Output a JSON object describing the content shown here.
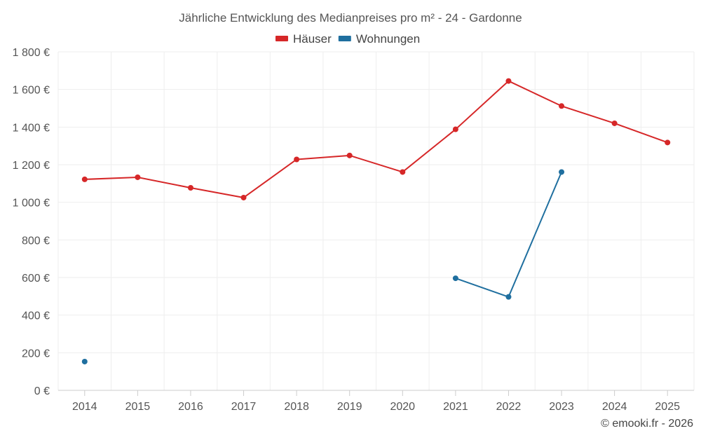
{
  "chart_data": {
    "type": "line",
    "title": "Jährliche Entwicklung des Medianpreises pro m² - 24 - Gardonne",
    "categories": [
      "2014",
      "2015",
      "2016",
      "2017",
      "2018",
      "2019",
      "2020",
      "2021",
      "2022",
      "2023",
      "2024",
      "2025"
    ],
    "series": [
      {
        "name": "Häuser",
        "color": "#d62728",
        "values": [
          1122,
          1133,
          1077,
          1025,
          1228,
          1249,
          1161,
          1388,
          1645,
          1512,
          1420,
          1318
        ]
      },
      {
        "name": "Wohnungen",
        "color": "#1f6f9f",
        "values": [
          153,
          null,
          null,
          null,
          null,
          null,
          null,
          596,
          497,
          1161,
          null,
          null
        ]
      }
    ],
    "y_ticks": [
      0,
      200,
      400,
      600,
      800,
      1000,
      1200,
      1400,
      1600,
      1800
    ],
    "y_tick_labels": [
      "0 €",
      "200 €",
      "400 €",
      "600 €",
      "800 €",
      "1 000 €",
      "1 200 €",
      "1 400 €",
      "1 600 €",
      "1 800 €"
    ],
    "ylim": [
      0,
      1800
    ],
    "xlabel": "",
    "ylabel": "",
    "legend_position": "top-center",
    "grid": true
  },
  "footer": "© emooki.fr - 2026"
}
